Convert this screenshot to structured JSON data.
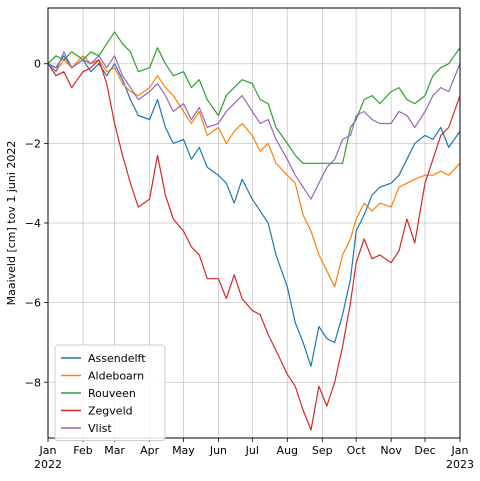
{
  "chart_data": {
    "type": "line",
    "title": "",
    "xlabel": "",
    "ylabel": "Maaiveld [cm] tov 1 juni 2022",
    "ylim": [
      -9.4,
      1.4
    ],
    "xlim": [
      "2022-01-01",
      "2023-01-01"
    ],
    "grid": true,
    "legend_position": "lower-left",
    "y_ticks": [
      0,
      -2,
      -4,
      -6,
      -8
    ],
    "x_ticks": [
      {
        "label": "Jan",
        "sub": "2022",
        "date": "2022-01-01"
      },
      {
        "label": "Feb",
        "sub": "",
        "date": "2022-02-01"
      },
      {
        "label": "Mar",
        "sub": "",
        "date": "2022-03-01"
      },
      {
        "label": "Apr",
        "sub": "",
        "date": "2022-04-01"
      },
      {
        "label": "May",
        "sub": "",
        "date": "2022-05-01"
      },
      {
        "label": "Jun",
        "sub": "",
        "date": "2022-06-01"
      },
      {
        "label": "Jul",
        "sub": "",
        "date": "2022-07-01"
      },
      {
        "label": "Aug",
        "sub": "",
        "date": "2022-08-01"
      },
      {
        "label": "Sep",
        "sub": "",
        "date": "2022-09-01"
      },
      {
        "label": "Oct",
        "sub": "",
        "date": "2022-10-01"
      },
      {
        "label": "Nov",
        "sub": "",
        "date": "2022-11-01"
      },
      {
        "label": "Dec",
        "sub": "",
        "date": "2022-12-01"
      },
      {
        "label": "Jan",
        "sub": "2023",
        "date": "2023-01-01"
      }
    ],
    "series": [
      {
        "name": "Assendelft",
        "color": "#1f77b4",
        "points": [
          [
            "2022-01-01",
            0.0
          ],
          [
            "2022-01-08",
            -0.1
          ],
          [
            "2022-01-15",
            0.2
          ],
          [
            "2022-01-22",
            -0.1
          ],
          [
            "2022-02-01",
            0.1
          ],
          [
            "2022-02-08",
            -0.2
          ],
          [
            "2022-02-15",
            0.0
          ],
          [
            "2022-02-22",
            -0.3
          ],
          [
            "2022-03-01",
            0.0
          ],
          [
            "2022-03-08",
            -0.4
          ],
          [
            "2022-03-15",
            -0.9
          ],
          [
            "2022-03-22",
            -1.3
          ],
          [
            "2022-04-01",
            -1.4
          ],
          [
            "2022-04-08",
            -0.9
          ],
          [
            "2022-04-15",
            -1.6
          ],
          [
            "2022-04-22",
            -2.0
          ],
          [
            "2022-05-01",
            -1.9
          ],
          [
            "2022-05-08",
            -2.4
          ],
          [
            "2022-05-15",
            -2.1
          ],
          [
            "2022-05-22",
            -2.6
          ],
          [
            "2022-06-01",
            -2.8
          ],
          [
            "2022-06-08",
            -3.0
          ],
          [
            "2022-06-15",
            -3.5
          ],
          [
            "2022-06-22",
            -2.9
          ],
          [
            "2022-07-01",
            -3.4
          ],
          [
            "2022-07-08",
            -3.7
          ],
          [
            "2022-07-15",
            -4.0
          ],
          [
            "2022-07-22",
            -4.8
          ],
          [
            "2022-08-01",
            -5.6
          ],
          [
            "2022-08-08",
            -6.5
          ],
          [
            "2022-08-15",
            -7.0
          ],
          [
            "2022-08-22",
            -7.6
          ],
          [
            "2022-08-29",
            -6.6
          ],
          [
            "2022-09-05",
            -6.9
          ],
          [
            "2022-09-12",
            -7.0
          ],
          [
            "2022-09-19",
            -6.3
          ],
          [
            "2022-09-26",
            -5.4
          ],
          [
            "2022-10-01",
            -4.2
          ],
          [
            "2022-10-08",
            -3.8
          ],
          [
            "2022-10-15",
            -3.3
          ],
          [
            "2022-10-22",
            -3.1
          ],
          [
            "2022-11-01",
            -3.0
          ],
          [
            "2022-11-08",
            -2.8
          ],
          [
            "2022-11-15",
            -2.4
          ],
          [
            "2022-11-22",
            -2.0
          ],
          [
            "2022-12-01",
            -1.8
          ],
          [
            "2022-12-08",
            -1.9
          ],
          [
            "2022-12-15",
            -1.6
          ],
          [
            "2022-12-22",
            -2.1
          ],
          [
            "2023-01-01",
            -1.7
          ]
        ]
      },
      {
        "name": "Aldeboarn",
        "color": "#ff7f0e",
        "points": [
          [
            "2022-01-01",
            0.0
          ],
          [
            "2022-01-08",
            -0.2
          ],
          [
            "2022-01-15",
            0.1
          ],
          [
            "2022-01-22",
            -0.1
          ],
          [
            "2022-02-01",
            0.2
          ],
          [
            "2022-02-08",
            0.0
          ],
          [
            "2022-02-15",
            0.1
          ],
          [
            "2022-02-22",
            -0.2
          ],
          [
            "2022-03-01",
            -0.1
          ],
          [
            "2022-03-08",
            -0.5
          ],
          [
            "2022-03-15",
            -0.7
          ],
          [
            "2022-03-22",
            -0.8
          ],
          [
            "2022-04-01",
            -0.6
          ],
          [
            "2022-04-08",
            -0.3
          ],
          [
            "2022-04-15",
            -0.6
          ],
          [
            "2022-04-22",
            -0.8
          ],
          [
            "2022-05-01",
            -1.2
          ],
          [
            "2022-05-08",
            -1.5
          ],
          [
            "2022-05-15",
            -1.2
          ],
          [
            "2022-05-22",
            -1.8
          ],
          [
            "2022-06-01",
            -1.6
          ],
          [
            "2022-06-08",
            -2.0
          ],
          [
            "2022-06-15",
            -1.7
          ],
          [
            "2022-06-22",
            -1.5
          ],
          [
            "2022-07-01",
            -1.8
          ],
          [
            "2022-07-08",
            -2.2
          ],
          [
            "2022-07-15",
            -2.0
          ],
          [
            "2022-07-22",
            -2.5
          ],
          [
            "2022-08-01",
            -2.8
          ],
          [
            "2022-08-08",
            -3.0
          ],
          [
            "2022-08-15",
            -3.8
          ],
          [
            "2022-08-22",
            -4.2
          ],
          [
            "2022-08-29",
            -4.8
          ],
          [
            "2022-09-05",
            -5.2
          ],
          [
            "2022-09-12",
            -5.6
          ],
          [
            "2022-09-19",
            -4.8
          ],
          [
            "2022-09-26",
            -4.4
          ],
          [
            "2022-10-01",
            -3.9
          ],
          [
            "2022-10-08",
            -3.5
          ],
          [
            "2022-10-15",
            -3.7
          ],
          [
            "2022-10-22",
            -3.5
          ],
          [
            "2022-11-01",
            -3.6
          ],
          [
            "2022-11-08",
            -3.1
          ],
          [
            "2022-11-15",
            -3.0
          ],
          [
            "2022-11-22",
            -2.9
          ],
          [
            "2022-12-01",
            -2.8
          ],
          [
            "2022-12-08",
            -2.8
          ],
          [
            "2022-12-15",
            -2.7
          ],
          [
            "2022-12-22",
            -2.8
          ],
          [
            "2023-01-01",
            -2.5
          ]
        ]
      },
      {
        "name": "Rouveen",
        "color": "#2ca02c",
        "points": [
          [
            "2022-01-01",
            0.0
          ],
          [
            "2022-01-08",
            0.2
          ],
          [
            "2022-01-15",
            0.1
          ],
          [
            "2022-01-22",
            0.3
          ],
          [
            "2022-02-01",
            0.1
          ],
          [
            "2022-02-08",
            0.3
          ],
          [
            "2022-02-15",
            0.2
          ],
          [
            "2022-02-22",
            0.5
          ],
          [
            "2022-03-01",
            0.8
          ],
          [
            "2022-03-08",
            0.5
          ],
          [
            "2022-03-15",
            0.3
          ],
          [
            "2022-03-22",
            -0.2
          ],
          [
            "2022-04-01",
            -0.1
          ],
          [
            "2022-04-08",
            0.4
          ],
          [
            "2022-04-15",
            0.0
          ],
          [
            "2022-04-22",
            -0.3
          ],
          [
            "2022-05-01",
            -0.2
          ],
          [
            "2022-05-08",
            -0.6
          ],
          [
            "2022-05-15",
            -0.4
          ],
          [
            "2022-05-22",
            -0.9
          ],
          [
            "2022-06-01",
            -1.3
          ],
          [
            "2022-06-08",
            -0.8
          ],
          [
            "2022-06-15",
            -0.6
          ],
          [
            "2022-06-22",
            -0.4
          ],
          [
            "2022-07-01",
            -0.5
          ],
          [
            "2022-07-08",
            -0.9
          ],
          [
            "2022-07-15",
            -1.0
          ],
          [
            "2022-07-22",
            -1.6
          ],
          [
            "2022-08-01",
            -2.0
          ],
          [
            "2022-08-08",
            -2.3
          ],
          [
            "2022-08-15",
            -2.5
          ],
          [
            "2022-08-22",
            -2.5
          ],
          [
            "2022-08-29",
            -2.5
          ],
          [
            "2022-09-05",
            -2.5
          ],
          [
            "2022-09-12",
            -2.5
          ],
          [
            "2022-09-19",
            -2.5
          ],
          [
            "2022-09-26",
            -1.6
          ],
          [
            "2022-10-01",
            -1.4
          ],
          [
            "2022-10-08",
            -0.9
          ],
          [
            "2022-10-15",
            -0.8
          ],
          [
            "2022-10-22",
            -1.0
          ],
          [
            "2022-11-01",
            -0.7
          ],
          [
            "2022-11-08",
            -0.6
          ],
          [
            "2022-11-15",
            -0.9
          ],
          [
            "2022-11-22",
            -1.0
          ],
          [
            "2022-12-01",
            -0.8
          ],
          [
            "2022-12-08",
            -0.3
          ],
          [
            "2022-12-15",
            -0.1
          ],
          [
            "2022-12-22",
            0.0
          ],
          [
            "2023-01-01",
            0.4
          ]
        ]
      },
      {
        "name": "Zegveld",
        "color": "#d62728",
        "points": [
          [
            "2022-01-01",
            0.0
          ],
          [
            "2022-01-08",
            -0.3
          ],
          [
            "2022-01-15",
            -0.2
          ],
          [
            "2022-01-22",
            -0.6
          ],
          [
            "2022-02-01",
            -0.2
          ],
          [
            "2022-02-08",
            -0.1
          ],
          [
            "2022-02-15",
            0.1
          ],
          [
            "2022-02-22",
            -0.5
          ],
          [
            "2022-03-01",
            -1.5
          ],
          [
            "2022-03-08",
            -2.3
          ],
          [
            "2022-03-15",
            -3.0
          ],
          [
            "2022-03-22",
            -3.6
          ],
          [
            "2022-04-01",
            -3.4
          ],
          [
            "2022-04-08",
            -2.3
          ],
          [
            "2022-04-15",
            -3.3
          ],
          [
            "2022-04-22",
            -3.9
          ],
          [
            "2022-05-01",
            -4.2
          ],
          [
            "2022-05-08",
            -4.6
          ],
          [
            "2022-05-15",
            -4.8
          ],
          [
            "2022-05-22",
            -5.4
          ],
          [
            "2022-06-01",
            -5.4
          ],
          [
            "2022-06-08",
            -5.9
          ],
          [
            "2022-06-15",
            -5.3
          ],
          [
            "2022-06-22",
            -5.9
          ],
          [
            "2022-07-01",
            -6.2
          ],
          [
            "2022-07-08",
            -6.3
          ],
          [
            "2022-07-15",
            -6.8
          ],
          [
            "2022-07-22",
            -7.2
          ],
          [
            "2022-08-01",
            -7.8
          ],
          [
            "2022-08-08",
            -8.1
          ],
          [
            "2022-08-15",
            -8.7
          ],
          [
            "2022-08-22",
            -9.2
          ],
          [
            "2022-08-29",
            -8.1
          ],
          [
            "2022-09-05",
            -8.6
          ],
          [
            "2022-09-12",
            -8.0
          ],
          [
            "2022-09-19",
            -7.1
          ],
          [
            "2022-09-26",
            -6.0
          ],
          [
            "2022-10-01",
            -5.0
          ],
          [
            "2022-10-08",
            -4.4
          ],
          [
            "2022-10-15",
            -4.9
          ],
          [
            "2022-10-22",
            -4.8
          ],
          [
            "2022-11-01",
            -5.0
          ],
          [
            "2022-11-08",
            -4.7
          ],
          [
            "2022-11-15",
            -3.9
          ],
          [
            "2022-11-22",
            -4.5
          ],
          [
            "2022-12-01",
            -3.0
          ],
          [
            "2022-12-08",
            -2.4
          ],
          [
            "2022-12-15",
            -1.8
          ],
          [
            "2022-12-22",
            -1.6
          ],
          [
            "2023-01-01",
            -0.8
          ]
        ]
      },
      {
        "name": "Vlist",
        "color": "#9467bd",
        "points": [
          [
            "2022-01-01",
            0.0
          ],
          [
            "2022-01-08",
            -0.2
          ],
          [
            "2022-01-15",
            0.3
          ],
          [
            "2022-01-22",
            -0.1
          ],
          [
            "2022-02-01",
            0.1
          ],
          [
            "2022-02-08",
            0.0
          ],
          [
            "2022-02-15",
            0.2
          ],
          [
            "2022-02-22",
            -0.1
          ],
          [
            "2022-03-01",
            0.2
          ],
          [
            "2022-03-08",
            -0.3
          ],
          [
            "2022-03-15",
            -0.6
          ],
          [
            "2022-03-22",
            -0.9
          ],
          [
            "2022-04-01",
            -0.7
          ],
          [
            "2022-04-08",
            -0.5
          ],
          [
            "2022-04-15",
            -0.8
          ],
          [
            "2022-04-22",
            -1.2
          ],
          [
            "2022-05-01",
            -1.0
          ],
          [
            "2022-05-08",
            -1.4
          ],
          [
            "2022-05-15",
            -1.1
          ],
          [
            "2022-05-22",
            -1.6
          ],
          [
            "2022-06-01",
            -1.5
          ],
          [
            "2022-06-08",
            -1.2
          ],
          [
            "2022-06-15",
            -1.0
          ],
          [
            "2022-06-22",
            -0.8
          ],
          [
            "2022-07-01",
            -1.2
          ],
          [
            "2022-07-08",
            -1.5
          ],
          [
            "2022-07-15",
            -1.4
          ],
          [
            "2022-07-22",
            -1.9
          ],
          [
            "2022-08-01",
            -2.4
          ],
          [
            "2022-08-08",
            -2.8
          ],
          [
            "2022-08-15",
            -3.1
          ],
          [
            "2022-08-22",
            -3.4
          ],
          [
            "2022-08-29",
            -3.0
          ],
          [
            "2022-09-05",
            -2.6
          ],
          [
            "2022-09-12",
            -2.4
          ],
          [
            "2022-09-19",
            -1.9
          ],
          [
            "2022-09-26",
            -1.8
          ],
          [
            "2022-10-01",
            -1.3
          ],
          [
            "2022-10-08",
            -1.2
          ],
          [
            "2022-10-15",
            -1.4
          ],
          [
            "2022-10-22",
            -1.5
          ],
          [
            "2022-11-01",
            -1.5
          ],
          [
            "2022-11-08",
            -1.2
          ],
          [
            "2022-11-15",
            -1.3
          ],
          [
            "2022-11-22",
            -1.6
          ],
          [
            "2022-12-01",
            -1.2
          ],
          [
            "2022-12-08",
            -0.8
          ],
          [
            "2022-12-15",
            -0.6
          ],
          [
            "2022-12-22",
            -0.7
          ],
          [
            "2023-01-01",
            0.0
          ]
        ]
      }
    ]
  }
}
